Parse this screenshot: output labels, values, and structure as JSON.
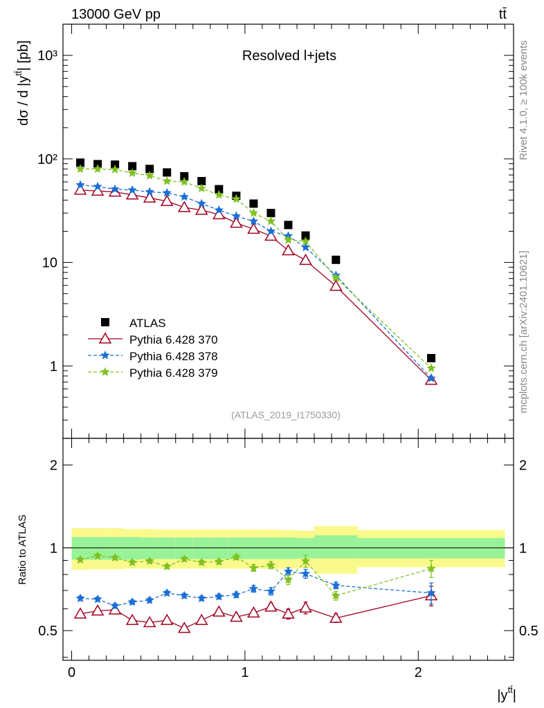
{
  "header": {
    "energy_label": "13000 GeV pp",
    "process_label": "tt̄"
  },
  "side_labels": {
    "rivet": "Rivet 4.1.0, ≥ 100k events",
    "mcplots": "mcplots.cern.ch [arXiv:2401.10621]"
  },
  "chart_data": [
    {
      "type": "scatter",
      "panel": "main",
      "title": "Resolved l+jets",
      "ylabel": "dσ / d |y^{tt̄}| [pb]",
      "yscale": "log",
      "ylim": [
        0.2,
        2000
      ],
      "xlim": [
        -0.05,
        2.55
      ],
      "ytick_labels": [
        "10³",
        "10²",
        "10",
        "1"
      ],
      "ytick_values": [
        1000,
        100,
        10,
        1
      ],
      "watermark": "(ATLAS_2019_I1750330)",
      "legend_position": "lower-left",
      "x": [
        0.05,
        0.15,
        0.25,
        0.35,
        0.45,
        0.55,
        0.65,
        0.75,
        0.85,
        0.95,
        1.05,
        1.15,
        1.25,
        1.35,
        1.525,
        2.075
      ],
      "series": [
        {
          "name": "ATLAS",
          "marker": "square",
          "color": "#000000",
          "values": [
            92,
            89,
            88,
            85,
            80,
            74,
            68,
            61,
            51,
            44,
            37,
            30,
            23,
            18.2,
            10.6,
            1.19
          ]
        },
        {
          "name": "Pythia 6.428 370",
          "marker": "triangle",
          "line": "solid",
          "color": "#a00020",
          "values": [
            50,
            49,
            48,
            45,
            42,
            39,
            34,
            32,
            29,
            24,
            21,
            18,
            13,
            10.5,
            5.9,
            0.73
          ]
        },
        {
          "name": "Pythia 6.428 378",
          "marker": "star",
          "line": "dashed",
          "color": "#1a6fd6",
          "values": [
            56,
            54,
            51,
            50,
            48,
            47,
            43,
            37,
            32,
            28,
            25,
            20,
            18,
            14,
            7.5,
            0.76
          ]
        },
        {
          "name": "Pythia 6.428 379",
          "marker": "star",
          "line": "dashed",
          "color": "#80c020",
          "values": [
            80,
            80,
            79,
            73,
            69,
            61,
            60,
            52,
            45,
            41,
            30,
            25,
            16.5,
            16,
            7.1,
            0.95
          ]
        }
      ]
    },
    {
      "type": "line",
      "panel": "ratio",
      "ylabel": "Ratio to ATLAS",
      "xlabel": "|y^{tt̄}|",
      "yscale": "log",
      "ylim": [
        0.39,
        2.5
      ],
      "xlim": [
        -0.05,
        2.55
      ],
      "ytick_labels": [
        "2",
        "1",
        "0.5"
      ],
      "ytick_values": [
        2,
        1,
        0.5
      ],
      "xtick_labels": [
        "0",
        "1",
        "2"
      ],
      "xtick_values": [
        0,
        1,
        2
      ],
      "bands": {
        "edges": [
          0.0,
          0.1,
          0.2,
          0.3,
          0.4,
          0.5,
          0.6,
          0.7,
          0.8,
          0.9,
          1.0,
          1.1,
          1.2,
          1.3,
          1.4,
          1.65,
          2.5
        ],
        "inner_lo": [
          0.905,
          0.905,
          0.905,
          0.905,
          0.91,
          0.91,
          0.91,
          0.91,
          0.91,
          0.91,
          0.91,
          0.91,
          0.91,
          0.915,
          0.915,
          0.915
        ],
        "inner_hi": [
          1.095,
          1.095,
          1.095,
          1.095,
          1.09,
          1.09,
          1.09,
          1.09,
          1.09,
          1.09,
          1.09,
          1.09,
          1.09,
          1.085,
          1.11,
          1.085
        ],
        "outer_lo": [
          0.83,
          0.835,
          0.835,
          0.84,
          0.84,
          0.84,
          0.84,
          0.84,
          0.84,
          0.84,
          0.84,
          0.84,
          0.84,
          0.845,
          0.805,
          0.85
        ],
        "outer_hi": [
          1.18,
          1.18,
          1.18,
          1.17,
          1.17,
          1.165,
          1.165,
          1.165,
          1.165,
          1.165,
          1.165,
          1.165,
          1.16,
          1.155,
          1.2,
          1.16
        ],
        "inner_color": "#98f298",
        "outer_color": "#fafa8c"
      },
      "x": [
        0.05,
        0.15,
        0.25,
        0.35,
        0.45,
        0.55,
        0.65,
        0.75,
        0.85,
        0.95,
        1.05,
        1.15,
        1.25,
        1.35,
        1.525,
        2.075
      ],
      "series": [
        {
          "name": "Pythia 6.428 370",
          "marker": "triangle",
          "line": "solid",
          "color": "#a00020",
          "values": [
            0.575,
            0.59,
            0.595,
            0.545,
            0.535,
            0.545,
            0.51,
            0.545,
            0.585,
            0.56,
            0.58,
            0.61,
            0.575,
            0.605,
            0.555,
            0.67
          ],
          "errors": [
            0.012,
            0.012,
            0.012,
            0.012,
            0.012,
            0.012,
            0.012,
            0.012,
            0.013,
            0.014,
            0.016,
            0.02,
            0.024,
            0.03,
            0.02,
            0.055
          ]
        },
        {
          "name": "Pythia 6.428 378",
          "marker": "star",
          "line": "dashed",
          "color": "#1a6fd6",
          "values": [
            0.655,
            0.65,
            0.615,
            0.635,
            0.645,
            0.685,
            0.67,
            0.655,
            0.665,
            0.675,
            0.71,
            0.695,
            0.82,
            0.805,
            0.73,
            0.685
          ],
          "errors": [
            0.012,
            0.012,
            0.012,
            0.012,
            0.013,
            0.013,
            0.013,
            0.013,
            0.014,
            0.016,
            0.02,
            0.022,
            0.026,
            0.03,
            0.02,
            0.06
          ]
        },
        {
          "name": "Pythia 6.428 379",
          "marker": "star",
          "line": "dashed",
          "color": "#80c020",
          "values": [
            0.905,
            0.935,
            0.92,
            0.885,
            0.895,
            0.855,
            0.91,
            0.885,
            0.89,
            0.925,
            0.845,
            0.865,
            0.765,
            0.895,
            0.67,
            0.84
          ],
          "errors": [
            0.014,
            0.014,
            0.014,
            0.014,
            0.014,
            0.015,
            0.015,
            0.016,
            0.018,
            0.02,
            0.024,
            0.026,
            0.03,
            0.045,
            0.025,
            0.06
          ]
        }
      ]
    }
  ]
}
